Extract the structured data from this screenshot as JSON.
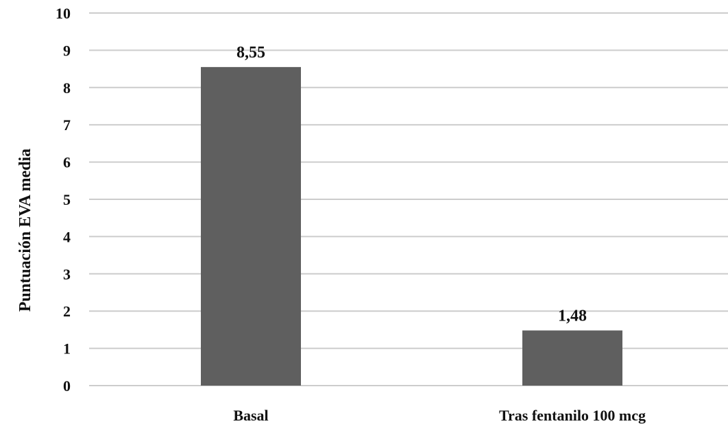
{
  "chart_data": {
    "type": "bar",
    "categories": [
      "Basal",
      "Tras fentanilo 100 mcg"
    ],
    "values": [
      8.55,
      1.48
    ],
    "value_labels": [
      "8,55",
      "1,48"
    ],
    "title": "",
    "xlabel": "",
    "ylabel": "Puntuación EVA media",
    "ylim": [
      0,
      10
    ],
    "y_ticks": [
      0,
      1,
      2,
      3,
      4,
      5,
      6,
      7,
      8,
      9,
      10
    ],
    "grid": true,
    "legend": "none",
    "colors": {
      "bar": "#5f5f5f",
      "gridline": "#cccccc",
      "text": "#111111"
    }
  }
}
